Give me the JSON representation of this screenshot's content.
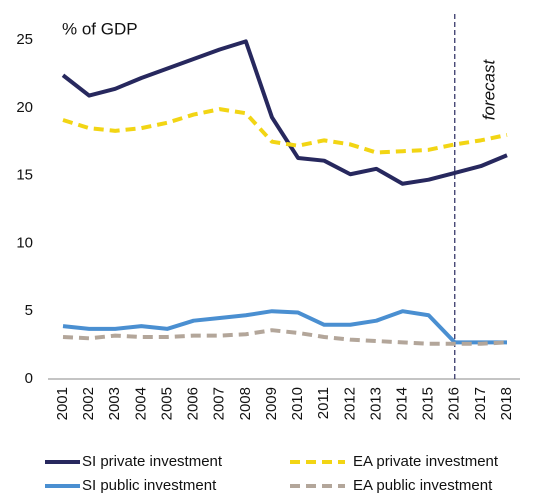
{
  "chart_data": {
    "type": "line",
    "y_label": "% of GDP",
    "categories": [
      "2001",
      "2002",
      "2003",
      "2004",
      "2005",
      "2006",
      "2007",
      "2008",
      "2009",
      "2010",
      "2011",
      "2012",
      "2013",
      "2014",
      "2015",
      "2016",
      "2017",
      "2018"
    ],
    "series": [
      {
        "name": "SI private investment",
        "color": "#27285e",
        "dashed": false,
        "values": [
          22.4,
          20.9,
          21.4,
          22.2,
          22.9,
          23.6,
          24.3,
          24.9,
          19.3,
          16.3,
          16.1,
          15.1,
          15.5,
          14.4,
          14.7,
          15.2,
          15.7,
          16.5
        ]
      },
      {
        "name": "EA private investment",
        "color": "#f2d514",
        "dashed": true,
        "values": [
          19.1,
          18.5,
          18.3,
          18.5,
          18.9,
          19.5,
          19.9,
          19.6,
          17.5,
          17.2,
          17.6,
          17.3,
          16.7,
          16.8,
          16.9,
          17.3,
          17.6,
          18.0
        ]
      },
      {
        "name": "SI public investment",
        "color": "#4a8fd1",
        "dashed": false,
        "values": [
          3.9,
          3.7,
          3.7,
          3.9,
          3.7,
          4.3,
          4.5,
          4.7,
          5.0,
          4.9,
          4.0,
          4.0,
          4.3,
          5.0,
          4.7,
          2.7,
          2.7,
          2.7
        ]
      },
      {
        "name": "EA public investment",
        "color": "#b3a69a",
        "dashed": true,
        "values": [
          3.1,
          3.0,
          3.2,
          3.1,
          3.1,
          3.2,
          3.2,
          3.3,
          3.6,
          3.4,
          3.1,
          2.9,
          2.8,
          2.7,
          2.6,
          2.6,
          2.6,
          2.7
        ]
      }
    ],
    "ylim": [
      0,
      25
    ],
    "yticks": [
      0,
      5,
      10,
      15,
      20,
      25
    ],
    "forecast_line": {
      "x": "2016",
      "label": "forecast"
    }
  }
}
